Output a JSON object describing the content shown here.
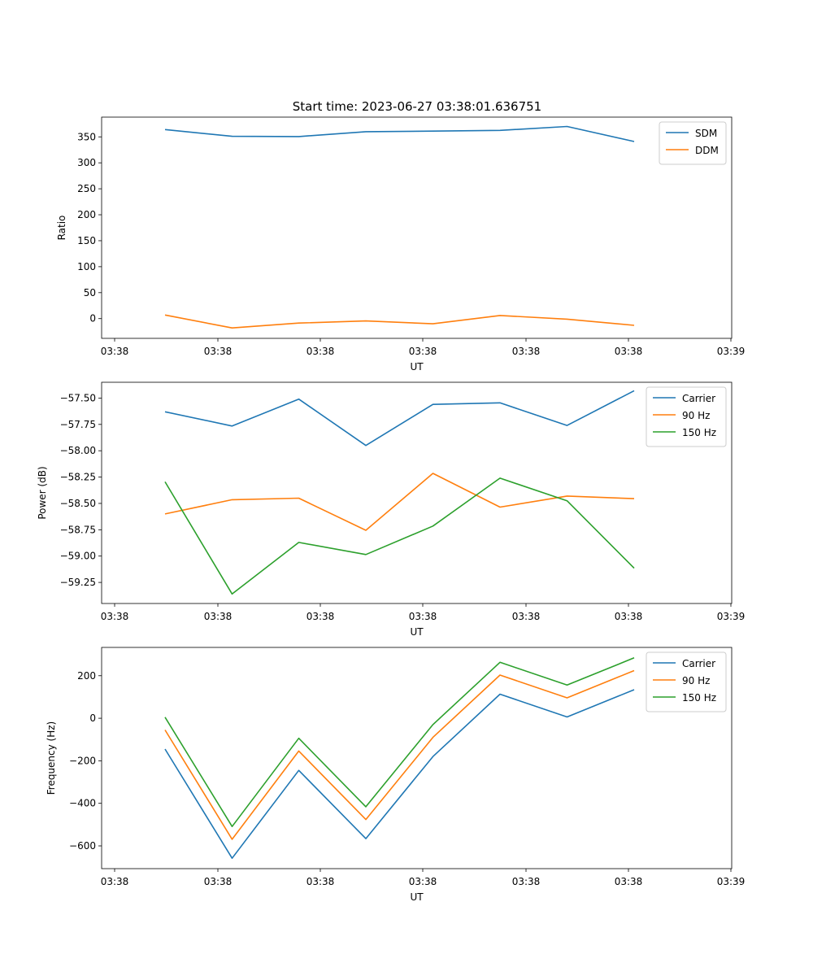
{
  "figure": {
    "title": "Start time: 2023-06-27 03:38:01.636751"
  },
  "colors": {
    "blue": "#1f77b4",
    "orange": "#ff7f0e",
    "green": "#2ca02c"
  },
  "chart_data": [
    {
      "type": "line",
      "ylabel": "Ratio",
      "xlabel": "UT",
      "x_tick_labels": [
        "03:38",
        "03:38",
        "03:38",
        "03:38",
        "03:38",
        "03:38",
        "03:39"
      ],
      "y_ticks": [
        0,
        50,
        100,
        150,
        200,
        250,
        300,
        350
      ],
      "ylim": [
        -38,
        388
      ],
      "legend_position": "top-right",
      "x_points": 8,
      "series": [
        {
          "name": "SDM",
          "color": "blue",
          "values": [
            364,
            351,
            350.5,
            360,
            361,
            362.5,
            370,
            341
          ]
        },
        {
          "name": "DDM",
          "color": "orange",
          "values": [
            7,
            -18,
            -8.5,
            -4.5,
            -10,
            6,
            -1,
            -13
          ]
        }
      ]
    },
    {
      "type": "line",
      "ylabel": "Power (dB)",
      "xlabel": "UT",
      "x_tick_labels": [
        "03:38",
        "03:38",
        "03:38",
        "03:38",
        "03:38",
        "03:38",
        "03:39"
      ],
      "y_ticks": [
        -59.25,
        -59.0,
        -58.75,
        -58.5,
        -58.25,
        -58.0,
        -57.75,
        -57.5
      ],
      "y_tick_labels": [
        "−59.25",
        "−59.00",
        "−58.75",
        "−58.50",
        "−58.25",
        "−58.00",
        "−57.75",
        "−57.50"
      ],
      "ylim": [
        -59.45,
        -57.35
      ],
      "legend_position": "top-right",
      "x_points": 8,
      "series": [
        {
          "name": "Carrier",
          "color": "blue",
          "values": [
            -57.63,
            -57.765,
            -57.51,
            -57.95,
            -57.56,
            -57.545,
            -57.76,
            -57.43
          ]
        },
        {
          "name": "90 Hz",
          "color": "orange",
          "values": [
            -58.6,
            -58.465,
            -58.45,
            -58.755,
            -58.215,
            -58.535,
            -58.43,
            -58.455
          ]
        },
        {
          "name": "150 Hz",
          "color": "green",
          "values": [
            -58.295,
            -59.36,
            -58.87,
            -58.985,
            -58.715,
            -58.26,
            -58.475,
            -59.115
          ]
        }
      ]
    },
    {
      "type": "line",
      "ylabel": "Frequency (Hz)",
      "xlabel": "UT",
      "x_tick_labels": [
        "03:38",
        "03:38",
        "03:38",
        "03:38",
        "03:38",
        "03:38",
        "03:39"
      ],
      "y_ticks": [
        -600,
        -400,
        -200,
        0,
        200
      ],
      "y_tick_labels": [
        "−600",
        "−400",
        "−200",
        "0",
        "200"
      ],
      "ylim": [
        -707,
        333
      ],
      "legend_position": "top-right",
      "x_points": 8,
      "series": [
        {
          "name": "Carrier",
          "color": "blue",
          "values": [
            -145,
            -658,
            -245,
            -566,
            -180,
            113,
            6,
            134
          ]
        },
        {
          "name": "90 Hz",
          "color": "orange",
          "values": [
            -55,
            -569,
            -154,
            -476,
            -90,
            203,
            96,
            224
          ]
        },
        {
          "name": "150 Hz",
          "color": "green",
          "values": [
            5,
            -509,
            -94,
            -416,
            -30,
            263,
            156,
            284
          ]
        }
      ]
    }
  ]
}
